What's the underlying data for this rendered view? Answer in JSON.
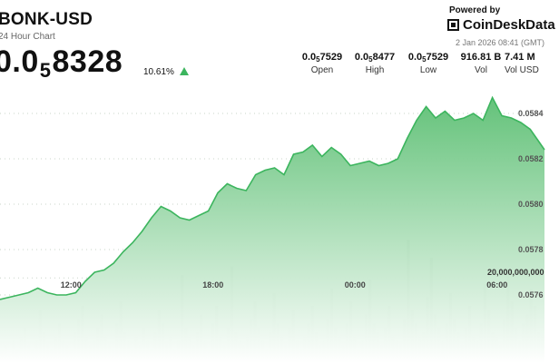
{
  "header": {
    "title": "BONK-USD",
    "subtitle": "24 Hour Chart",
    "price_prefix": "0.0",
    "price_sub": "5",
    "price_digits": "8328",
    "change": "10.61%",
    "change_direction": "up-triangle-icon"
  },
  "branding": {
    "powered_by": "Powered by",
    "name": "CoinDeskData",
    "logo_icon": "coindesk-logo-icon",
    "timestamp": "2 Jan 2026 08:41 (GMT)"
  },
  "stats": [
    {
      "prefix": "0.0",
      "sub": "5",
      "digits": "7529",
      "label": "Open"
    },
    {
      "prefix": "0.0",
      "sub": "5",
      "digits": "8477",
      "label": "High"
    },
    {
      "prefix": "0.0",
      "sub": "5",
      "digits": "7529",
      "label": "Low"
    },
    {
      "prefix": "",
      "sub": "",
      "digits": "916.81 B",
      "label": "Vol"
    },
    {
      "prefix": "",
      "sub": "",
      "digits": "7.41 M",
      "label": "Vol USD"
    }
  ],
  "colors": {
    "line": "#3cb55e",
    "fill_top": "#5cbf73",
    "fill_bottom": "#ffffff",
    "volume": "#6d7a6b",
    "grid": "#c9d6c9"
  },
  "chart_data": {
    "type": "area",
    "title": "BONK-USD",
    "y_ticks": [
      "0.0584",
      "0.0582",
      "0.0580",
      "0.0578",
      "0.0576"
    ],
    "y_tick_values": [
      8.4e-06,
      8.2e-06,
      8e-06,
      7.8e-06,
      7.6e-06
    ],
    "ylim": [
      7.3e-06,
      8.5e-06
    ],
    "x_ticks": [
      "12:00",
      "18:00",
      "00:00",
      "06:00"
    ],
    "x_tick_hours": [
      3,
      9,
      15,
      21
    ],
    "x_range_hours": [
      0,
      23
    ],
    "grid": "dotted-horizontal",
    "series": [
      {
        "x_hours": [
          0,
          0.4,
          0.8,
          1.2,
          1.6,
          2.0,
          2.4,
          2.8,
          3.2,
          3.6,
          4.0,
          4.4,
          4.8,
          5.2,
          5.6,
          6.0,
          6.4,
          6.8,
          7.2,
          7.6,
          8.0,
          8.4,
          8.8,
          9.2,
          9.6,
          10.0,
          10.4,
          10.8,
          11.2,
          11.6,
          12.0,
          12.4,
          12.8,
          13.2,
          13.6,
          14.0,
          14.4,
          14.8,
          15.2,
          15.6,
          16.0,
          16.4,
          16.8,
          17.2,
          17.6,
          18.0,
          18.4,
          18.8,
          19.2,
          19.6,
          20.0,
          20.4,
          20.8,
          21.2,
          21.6,
          22.0,
          22.4,
          22.8,
          23.0
        ],
        "values": [
          7.58e-06,
          7.59e-06,
          7.6e-06,
          7.61e-06,
          7.63e-06,
          7.61e-06,
          7.6e-06,
          7.6e-06,
          7.61e-06,
          7.66e-06,
          7.7e-06,
          7.71e-06,
          7.74e-06,
          7.79e-06,
          7.83e-06,
          7.88e-06,
          7.94e-06,
          7.99e-06,
          7.97e-06,
          7.94e-06,
          7.93e-06,
          7.95e-06,
          7.97e-06,
          8.05e-06,
          8.09e-06,
          8.07e-06,
          8.06e-06,
          8.13e-06,
          8.15e-06,
          8.16e-06,
          8.13e-06,
          8.22e-06,
          8.23e-06,
          8.26e-06,
          8.21e-06,
          8.25e-06,
          8.22e-06,
          8.17e-06,
          8.18e-06,
          8.19e-06,
          8.17e-06,
          8.18e-06,
          8.2e-06,
          8.29e-06,
          8.37e-06,
          8.43e-06,
          8.38e-06,
          8.41e-06,
          8.37e-06,
          8.38e-06,
          8.4e-06,
          8.37e-06,
          8.47e-06,
          8.39e-06,
          8.38e-06,
          8.36e-06,
          8.33e-06,
          8.27e-06,
          8.24e-06
        ]
      }
    ],
    "volume": {
      "label": "20,000,000,000",
      "label_value": 20000000000,
      "max": 31000000000,
      "values": [
        3,
        4,
        2,
        5,
        3,
        6,
        8,
        4,
        3,
        5,
        12,
        7,
        4,
        3,
        6,
        9,
        5,
        4,
        3,
        7,
        10,
        13,
        6,
        4,
        5,
        8,
        11,
        6,
        4,
        3,
        9,
        14,
        7,
        5,
        3,
        6,
        4,
        8,
        5,
        3,
        7,
        12,
        9,
        4,
        6,
        3,
        5,
        20,
        8,
        6,
        4,
        7,
        11,
        5,
        3,
        9,
        13,
        6,
        4,
        8,
        22,
        7,
        5,
        4,
        6,
        10,
        14,
        8,
        5,
        3,
        7,
        16,
        9,
        6,
        4,
        8,
        12,
        5,
        3,
        6,
        9,
        13,
        7,
        4,
        5,
        10,
        17,
        8,
        6,
        4,
        9,
        14,
        6,
        3,
        5,
        11,
        19,
        9,
        7,
        4,
        8,
        13,
        6,
        5,
        4,
        10,
        28,
        12,
        9,
        6,
        7,
        15,
        24,
        11,
        8,
        5,
        9,
        16,
        10,
        7,
        4,
        8,
        13,
        6,
        5,
        9,
        18,
        12,
        7,
        6,
        4,
        10,
        21,
        14,
        8,
        5,
        9,
        11,
        17,
        13,
        7,
        6
      ]
    }
  }
}
